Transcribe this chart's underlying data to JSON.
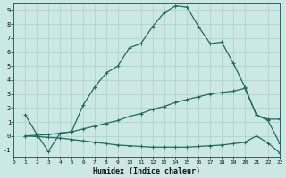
{
  "xlabel": "Humidex (Indice chaleur)",
  "background_color": "#cce8e4",
  "line_color": "#1e6b60",
  "grid_color": "#aacfcb",
  "xlim": [
    0,
    23
  ],
  "ylim": [
    -1.5,
    9.5
  ],
  "xticks": [
    0,
    1,
    2,
    3,
    4,
    5,
    6,
    7,
    8,
    9,
    10,
    11,
    12,
    13,
    14,
    15,
    16,
    17,
    18,
    19,
    20,
    21,
    22,
    23
  ],
  "yticks": [
    -1,
    0,
    1,
    2,
    3,
    4,
    5,
    6,
    7,
    8,
    9
  ],
  "line1_x": [
    1,
    2,
    3,
    4,
    5,
    6,
    7,
    8,
    9,
    10,
    11,
    12,
    13,
    14,
    15,
    16,
    17,
    18,
    19,
    20,
    21,
    22,
    23
  ],
  "line1_y": [
    1.5,
    0.1,
    -1.1,
    0.2,
    0.3,
    2.2,
    3.5,
    4.5,
    5.0,
    6.3,
    6.6,
    7.8,
    8.8,
    9.3,
    9.2,
    7.8,
    6.6,
    6.7,
    5.2,
    3.5,
    1.5,
    1.2,
    1.2
  ],
  "line2_x": [
    1,
    2,
    3,
    4,
    5,
    6,
    7,
    8,
    9,
    10,
    11,
    12,
    13,
    14,
    15,
    16,
    17,
    18,
    19,
    20,
    21,
    22,
    23
  ],
  "line2_y": [
    0.0,
    0.05,
    0.1,
    0.2,
    0.3,
    0.5,
    0.7,
    0.9,
    1.1,
    1.4,
    1.6,
    1.9,
    2.1,
    2.4,
    2.6,
    2.8,
    3.0,
    3.1,
    3.2,
    3.4,
    1.5,
    1.1,
    -0.5
  ],
  "line3_x": [
    1,
    2,
    3,
    4,
    5,
    6,
    7,
    8,
    9,
    10,
    11,
    12,
    13,
    14,
    15,
    16,
    17,
    18,
    19,
    20,
    21,
    22,
    23
  ],
  "line3_y": [
    0.0,
    -0.05,
    -0.1,
    -0.15,
    -0.25,
    -0.35,
    -0.45,
    -0.55,
    -0.65,
    -0.7,
    -0.75,
    -0.8,
    -0.8,
    -0.8,
    -0.8,
    -0.75,
    -0.7,
    -0.65,
    -0.55,
    -0.45,
    0.0,
    -0.5,
    -1.2
  ]
}
